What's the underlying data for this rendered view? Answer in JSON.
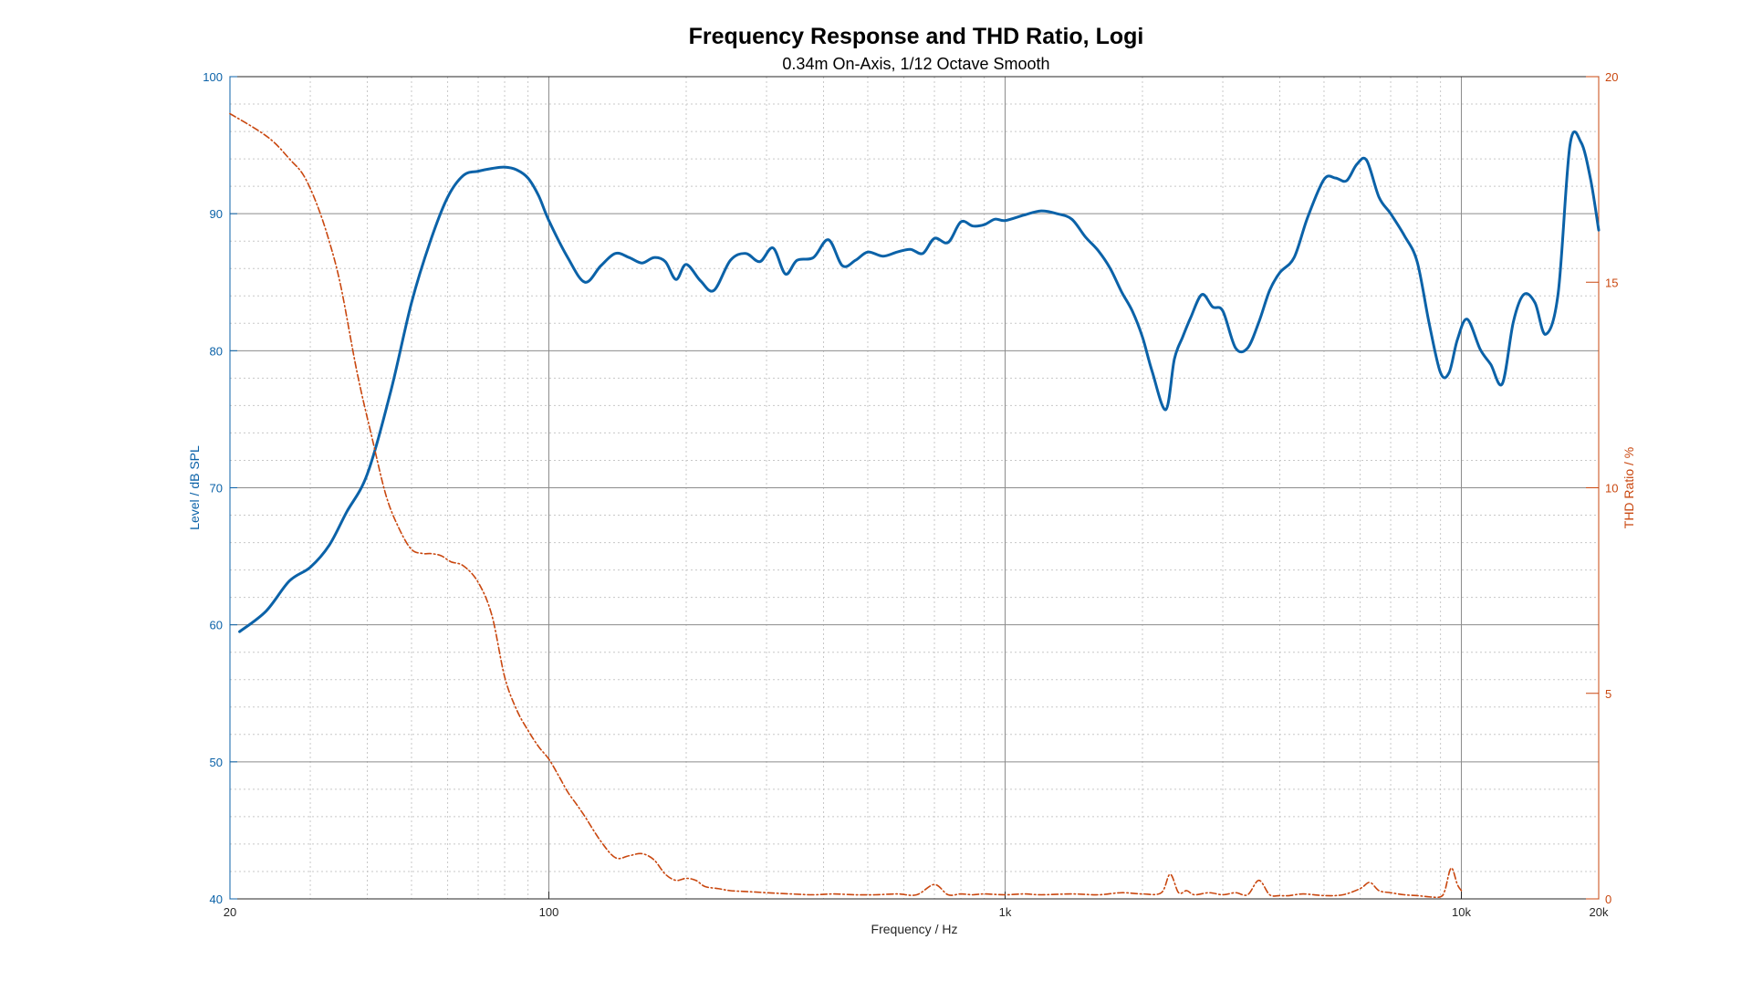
{
  "chart_data": {
    "type": "line",
    "title": "Frequency Response and THD Ratio, Logi",
    "subtitle": "0.34m On-Axis, 1/12 Octave Smooth",
    "xlabel": "Frequency / Hz",
    "ylabel_left": "Level / dB SPL",
    "ylabel_right": "THD Ratio / %",
    "x_scale": "log",
    "xlim": [
      20,
      20000
    ],
    "ylim_left": [
      40,
      100
    ],
    "ylim_right": [
      0,
      20
    ],
    "x_ticks": [
      20,
      100,
      1000,
      10000,
      20000
    ],
    "x_tick_labels": [
      "20",
      "100",
      "1k",
      "10k",
      "20k"
    ],
    "y_ticks_left": [
      40,
      50,
      60,
      70,
      80,
      90,
      100
    ],
    "y_tick_labels_left": [
      "40",
      "50",
      "60",
      "70",
      "80",
      "90",
      "100"
    ],
    "y_ticks_right": [
      0,
      5,
      10,
      15,
      20
    ],
    "y_tick_labels_right": [
      "0",
      "5",
      "10",
      "15",
      "20"
    ],
    "grid": true,
    "colors": {
      "level": "#0b62a8",
      "thd": "#c9470f",
      "left_axis": "#0b62a8",
      "right_axis": "#c9470f"
    },
    "series": [
      {
        "axis": "left",
        "x": [
          21,
          24,
          27,
          30,
          33,
          36,
          40,
          45,
          50,
          55,
          60,
          65,
          70,
          75,
          80,
          85,
          90,
          95,
          100,
          110,
          120,
          130,
          140,
          150,
          160,
          170,
          180,
          190,
          200,
          215,
          230,
          250,
          270,
          290,
          310,
          330,
          350,
          380,
          410,
          440,
          470,
          500,
          540,
          580,
          620,
          660,
          700,
          750,
          800,
          850,
          900,
          950,
          1000,
          1100,
          1200,
          1300,
          1400,
          1500,
          1600,
          1700,
          1800,
          1900,
          2000,
          2100,
          2250,
          2350,
          2450,
          2550,
          2700,
          2850,
          3000,
          3200,
          3400,
          3600,
          3800,
          4000,
          4300,
          4600,
          5000,
          5300,
          5600,
          5900,
          6200,
          6600,
          7000,
          7500,
          8000,
          8500,
          9000,
          9400,
          9800,
          10300,
          11000,
          11600,
          12300,
          13000,
          13700,
          14500,
          15300,
          16300,
          17300,
          18300,
          19200,
          20000
        ],
        "values": [
          59.5,
          61.0,
          63.2,
          64.2,
          65.8,
          68.2,
          71.0,
          77.0,
          83.5,
          88.0,
          91.2,
          92.8,
          93.1,
          93.3,
          93.4,
          93.2,
          92.6,
          91.3,
          89.5,
          86.8,
          85.0,
          86.2,
          87.1,
          86.8,
          86.4,
          86.8,
          86.5,
          85.2,
          86.3,
          85.1,
          84.4,
          86.6,
          87.1,
          86.5,
          87.5,
          85.6,
          86.6,
          86.8,
          88.1,
          86.2,
          86.6,
          87.2,
          86.9,
          87.2,
          87.4,
          87.1,
          88.2,
          87.9,
          89.4,
          89.1,
          89.2,
          89.6,
          89.5,
          89.9,
          90.2,
          90.0,
          89.6,
          88.3,
          87.3,
          86.0,
          84.3,
          82.9,
          81.0,
          78.5,
          75.7,
          79.4,
          81.0,
          82.4,
          84.1,
          83.2,
          82.9,
          80.2,
          80.2,
          82.1,
          84.4,
          85.7,
          86.8,
          89.7,
          92.5,
          92.6,
          92.4,
          93.6,
          93.9,
          91.2,
          90.0,
          88.4,
          86.5,
          82.0,
          78.4,
          78.4,
          80.8,
          82.3,
          80.1,
          79.0,
          77.6,
          82.1,
          84.1,
          83.5,
          81.2,
          84.2,
          95.0,
          95.2,
          92.5,
          88.8
        ]
      },
      {
        "axis": "right",
        "x": [
          20,
          23,
          25,
          27,
          29,
          31,
          33,
          35,
          38,
          41,
          44,
          47,
          50,
          53,
          55,
          58,
          61,
          65,
          70,
          75,
          80,
          85,
          90,
          95,
          100,
          105,
          110,
          115,
          120,
          130,
          140,
          150,
          160,
          170,
          180,
          190,
          200,
          210,
          220,
          235,
          250,
          270,
          300,
          340,
          380,
          420,
          470,
          520,
          580,
          640,
          700,
          750,
          800,
          850,
          900,
          1000,
          1100,
          1200,
          1400,
          1600,
          1800,
          2000,
          2200,
          2300,
          2400,
          2500,
          2600,
          2800,
          3000,
          3200,
          3400,
          3600,
          3800,
          4000,
          4200,
          4500,
          5000,
          5500,
          6000,
          6300,
          6600,
          7000,
          7500,
          8000,
          8500,
          9000,
          9200,
          9500,
          9800,
          10000
        ],
        "values": [
          19.1,
          18.7,
          18.4,
          18.0,
          17.6,
          16.9,
          16.0,
          14.9,
          12.8,
          11.2,
          9.8,
          9.0,
          8.5,
          8.4,
          8.4,
          8.35,
          8.2,
          8.1,
          7.7,
          6.9,
          5.4,
          4.6,
          4.1,
          3.7,
          3.4,
          3.0,
          2.6,
          2.3,
          2.0,
          1.4,
          1.0,
          1.05,
          1.1,
          0.95,
          0.6,
          0.45,
          0.5,
          0.45,
          0.3,
          0.25,
          0.2,
          0.18,
          0.15,
          0.12,
          0.1,
          0.12,
          0.1,
          0.1,
          0.12,
          0.1,
          0.35,
          0.1,
          0.12,
          0.1,
          0.12,
          0.1,
          0.12,
          0.1,
          0.12,
          0.1,
          0.15,
          0.12,
          0.15,
          0.6,
          0.15,
          0.2,
          0.1,
          0.15,
          0.1,
          0.15,
          0.1,
          0.45,
          0.1,
          0.08,
          0.08,
          0.12,
          0.08,
          0.1,
          0.25,
          0.4,
          0.2,
          0.15,
          0.1,
          0.08,
          0.05,
          0.05,
          0.2,
          0.75,
          0.35,
          0.2
        ]
      }
    ]
  }
}
